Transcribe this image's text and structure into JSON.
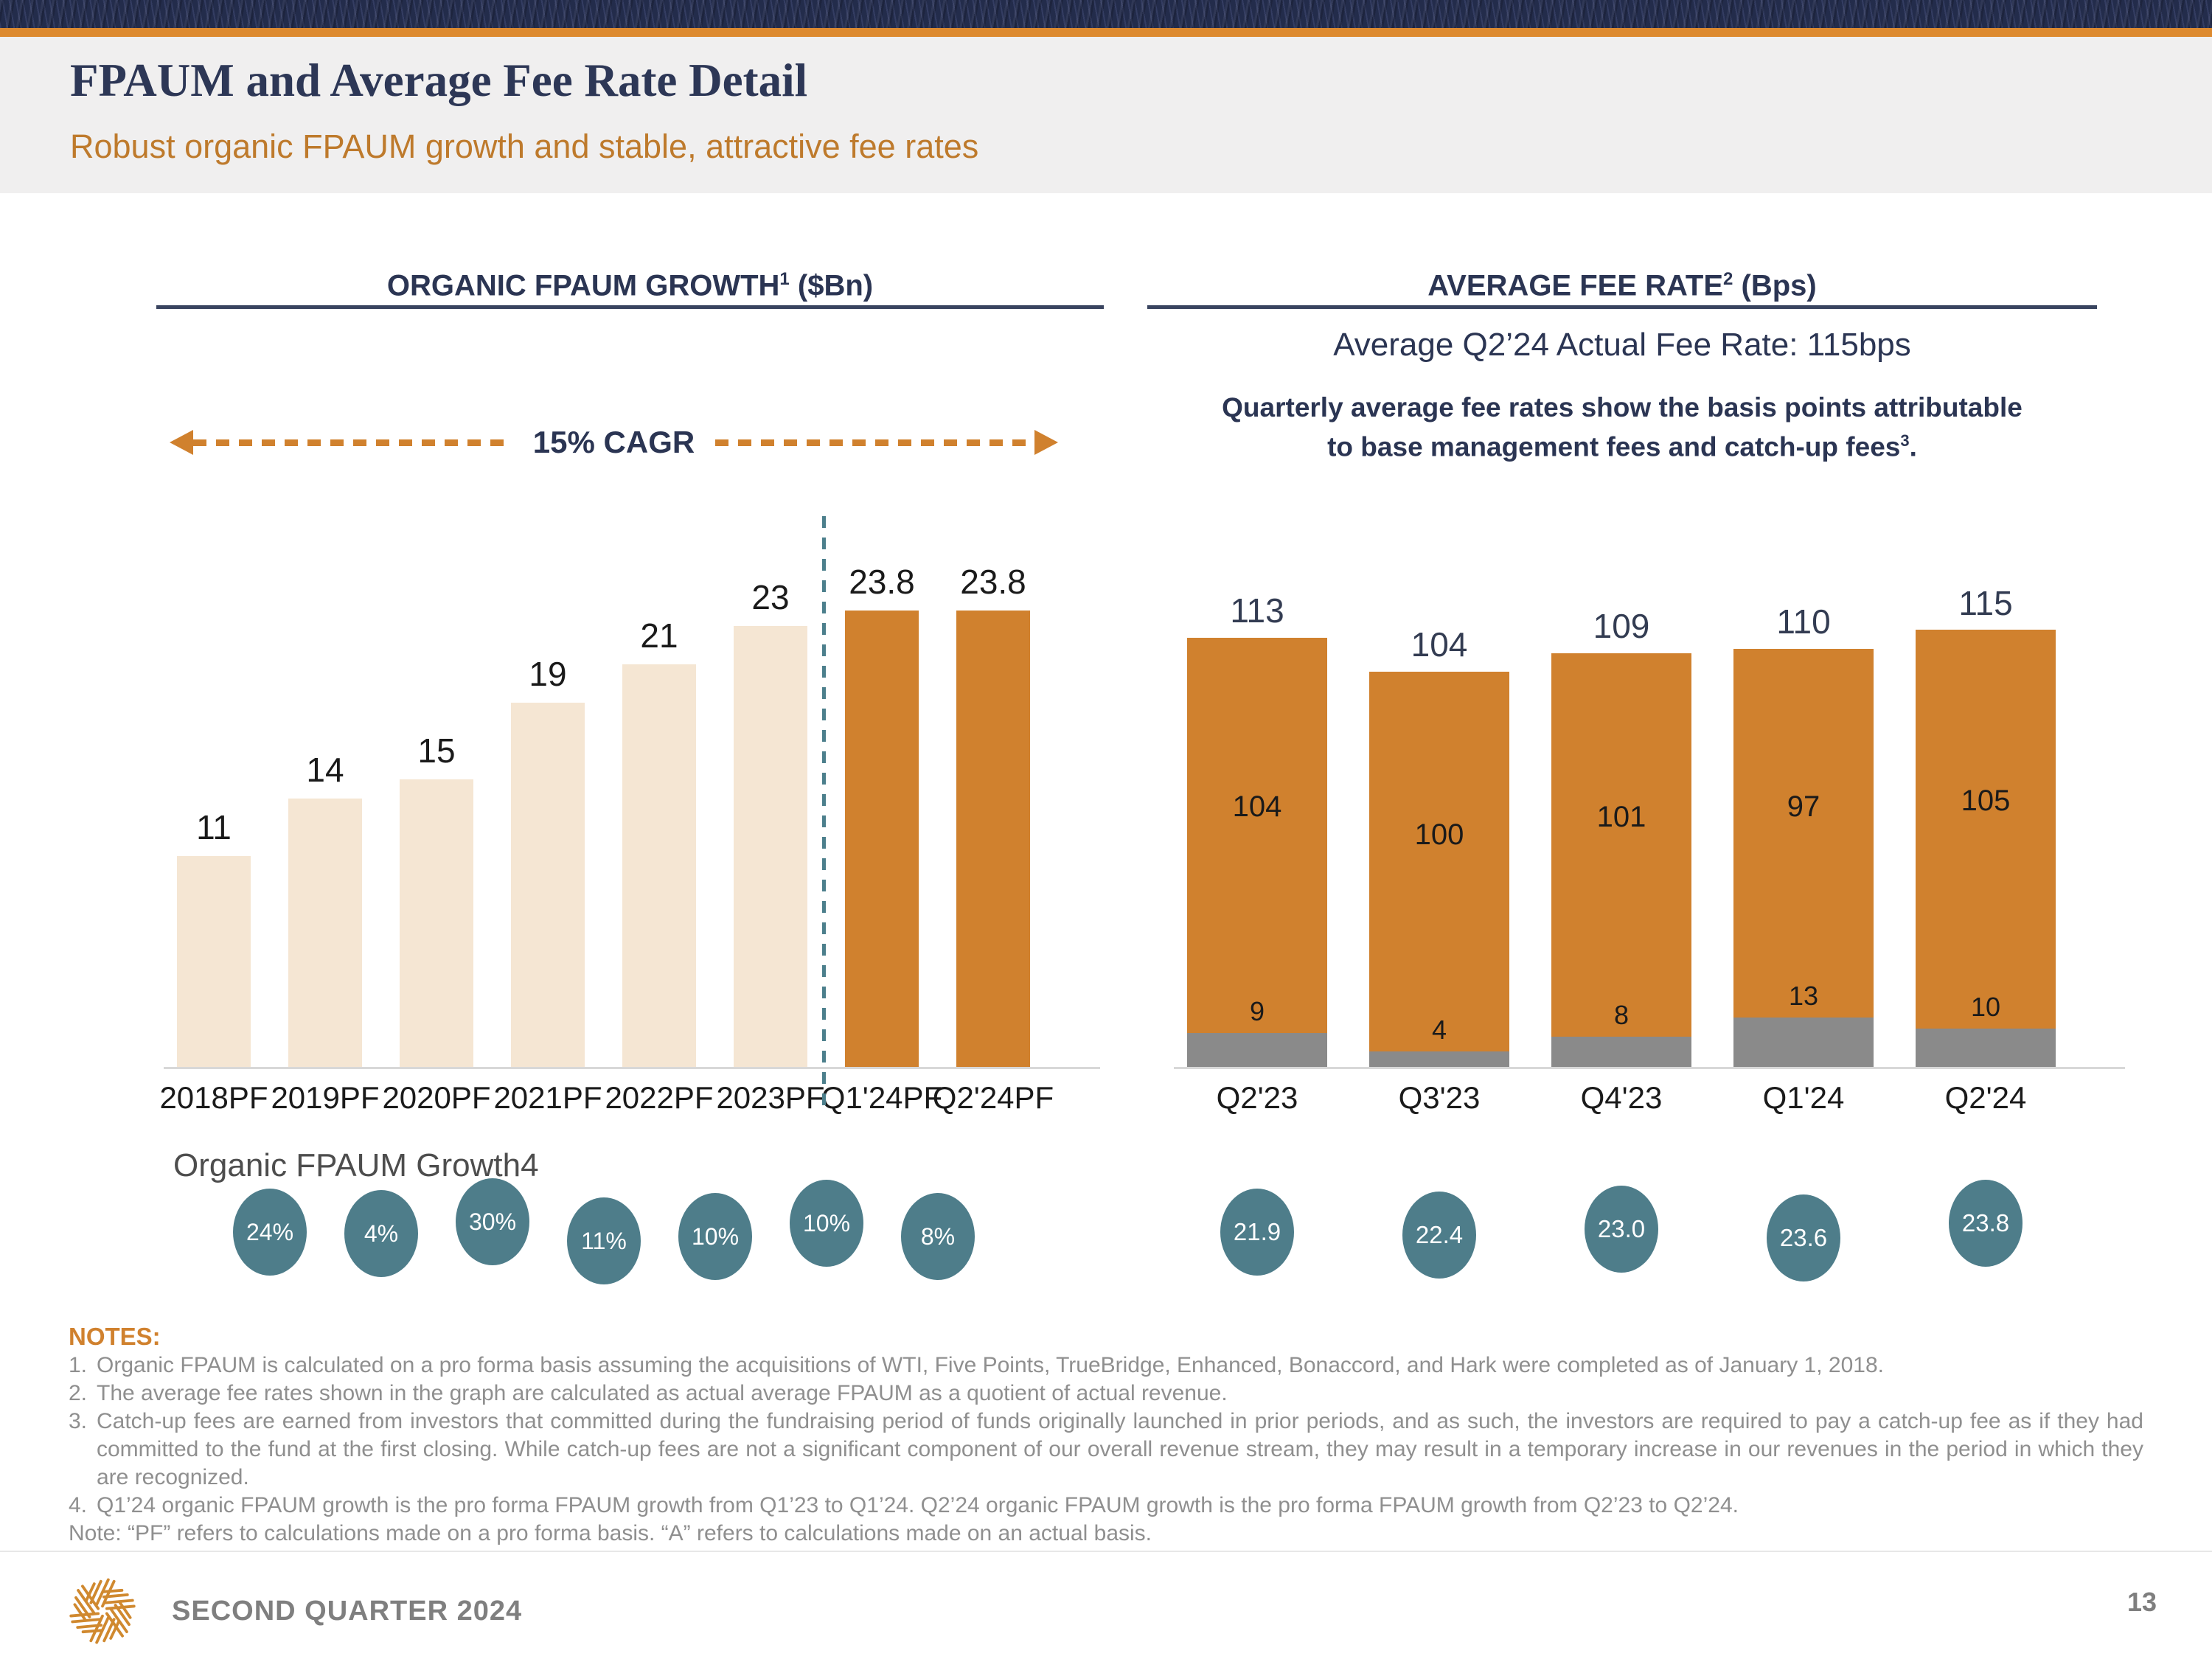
{
  "header": {
    "title": "FPAUM and Average Fee Rate Detail",
    "subtitle": "Robust organic FPAUM growth and stable, attractive fee rates"
  },
  "left_chart": {
    "title": {
      "pre": "ORGANIC FPAUM GROWTH",
      "sup": "1",
      "post": " ($Bn)"
    },
    "cagr_label": "15% CAGR",
    "caption": "Organic FPAUM Growth4"
  },
  "right_chart": {
    "title": {
      "pre": "AVERAGE FEE RATE",
      "sup": "2",
      "post": " (Bps)"
    },
    "subtitle": "Average Q2’24 Actual Fee Rate: 115bps",
    "note_line1": "Quarterly average fee rates show the basis points attributable",
    "note_line2": {
      "pre": "to base management fees and catch-up fees",
      "sup": "3",
      "post": "."
    }
  },
  "chart_data": [
    {
      "type": "bar",
      "title": "ORGANIC FPAUM GROWTH¹ ($Bn)",
      "categories": [
        "2018PF",
        "2019PF",
        "2020PF",
        "2021PF",
        "2022PF",
        "2023PF",
        "Q1'24PF",
        "Q2'24PF"
      ],
      "values": [
        11,
        14,
        15,
        19,
        21,
        23,
        23.8,
        23.8
      ],
      "labels": [
        "11",
        "14",
        "15",
        "19",
        "21",
        "23",
        "23.8",
        "23.8"
      ],
      "highlight_from": 6,
      "bar_color": "#F5E6D3",
      "highlight_color": "#D0812E",
      "annotation": "15% CAGR",
      "ylim": [
        0,
        26
      ],
      "grid": false,
      "growth_circles": [
        "24%",
        "4%",
        "30%",
        "11%",
        "10%",
        "10%",
        "8%"
      ]
    },
    {
      "type": "stacked-bar",
      "title": "AVERAGE FEE RATE² (Bps)",
      "categories": [
        "Q2'23",
        "Q3'23",
        "Q4'23",
        "Q1'24",
        "Q2'24"
      ],
      "series": [
        {
          "name": "catch-up fees",
          "color": "#8A8A8A",
          "values": [
            9,
            4,
            8,
            13,
            10
          ]
        },
        {
          "name": "base management fees",
          "color": "#D0812E",
          "values": [
            104,
            100,
            101,
            97,
            105
          ]
        }
      ],
      "totals": [
        "113",
        "104",
        "109",
        "110",
        "115"
      ],
      "ylim": [
        0,
        120
      ],
      "grid": false,
      "fpaum_circles": [
        "21.9",
        "22.4",
        "23.0",
        "23.6",
        "23.8"
      ]
    }
  ],
  "notes": {
    "heading": "NOTES:",
    "items": [
      {
        "num": "1.",
        "text": "Organic FPAUM is calculated on a pro forma basis assuming the acquisitions of WTI, Five Points, TrueBridge, Enhanced, Bonaccord, and Hark were completed as of January 1, 2018."
      },
      {
        "num": "2.",
        "text": "The average fee rates shown in the graph are calculated as actual average FPAUM as a quotient of actual revenue."
      },
      {
        "num": "3.",
        "text": "Catch-up fees are earned from investors that committed during the fundraising period of funds originally launched in prior periods, and as such, the investors are required to pay a catch-up fee as if they had committed to the fund at the first closing. While catch-up fees are not a significant component of our overall revenue stream, they may result in a temporary increase in our revenues in the period in which they are recognized."
      },
      {
        "num": "4.",
        "text": "Q1’24 organic FPAUM growth is the pro forma FPAUM growth from Q1’23 to Q1’24. Q2’24 organic FPAUM growth is the pro forma FPAUM growth from Q2’23 to Q2’24."
      },
      {
        "num": "",
        "text": "Note: “PF” refers to calculations made on a pro forma basis. “A” refers to calculations made on an actual basis."
      }
    ]
  },
  "footer": {
    "label": "SECOND QUARTER 2024",
    "page": "13"
  },
  "colors": {
    "navy": "#2B3553",
    "accent_orange": "#D0812E",
    "bar_beige": "#F5E6D3",
    "catchup_gray": "#8A8A8A",
    "circle_teal": "#4E7D8A",
    "separator_teal": "#4C7F8C"
  }
}
